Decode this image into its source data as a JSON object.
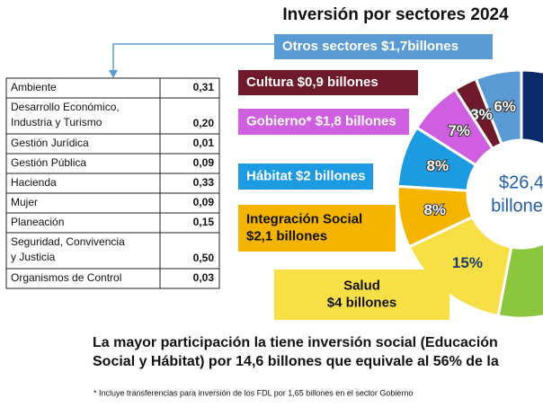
{
  "title": "Inversión por sectores 2024",
  "center_label": [
    "$26,4",
    "billones"
  ],
  "segments": [
    {
      "label": [
        "Otros sectores $1,7billones"
      ],
      "value": 6,
      "value_label": "6%",
      "color": "#5b9bd5"
    },
    {
      "label": [
        "Cultura $0,9 billones"
      ],
      "value": 3,
      "value_label": "3%",
      "color": "#6e1a2c"
    },
    {
      "label": [
        "Gobierno* $1,8 billones"
      ],
      "value": 7,
      "value_label": "7%",
      "color": "#cf5fe0"
    },
    {
      "label": [
        "Hábitat $2 billones"
      ],
      "value": 8,
      "value_label": "8%",
      "color": "#1c9be3"
    },
    {
      "label": [
        "Integración Social",
        "$2,1 billones"
      ],
      "value": 8,
      "value_label": "8%",
      "color": "#f5b400"
    },
    {
      "label": [
        "Salud",
        "$4 billones"
      ],
      "value": 15,
      "value_label": "15%",
      "color": "#f7df45"
    }
  ],
  "table": {
    "rows": [
      [
        [
          "Ambiente"
        ],
        "0,31"
      ],
      [
        [
          "Desarrollo Económico,",
          "Industria y Turismo"
        ],
        "0,20"
      ],
      [
        [
          "Gestión Jurídica"
        ],
        "0,01"
      ],
      [
        [
          "Gestión Pública"
        ],
        "0,09"
      ],
      [
        [
          "Hacienda"
        ],
        "0,33"
      ],
      [
        [
          "Mujer"
        ],
        "0,09"
      ],
      [
        [
          "Planeación"
        ],
        "0,15"
      ],
      [
        [
          "Seguridad, Convivencia",
          "y Justicia"
        ],
        "0,50"
      ],
      [
        [
          "Organismos de Control"
        ],
        "0,03"
      ]
    ]
  },
  "conclusion": [
    "La mayor participación la tiene inversión social (Educación",
    "Social y Hábitat) por 14,6 billones que equivale al 56% de la"
  ],
  "footnote": "* Incluye transferencias para inversión de los FDL por 1,65 billones en el sector Gobierno"
}
